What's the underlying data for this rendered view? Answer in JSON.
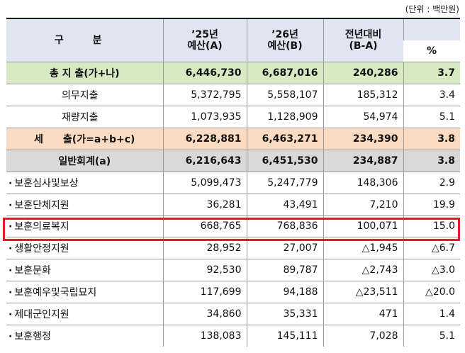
{
  "unit_note": "(단위 : 백만원)",
  "header": {
    "category": "구 분",
    "col1_line1": "’25년",
    "col1_line2": "예산(A)",
    "col2_line1": "’26년",
    "col2_line2": "예산(B)",
    "col3_line1": "전년대비",
    "col3_line2": "(B-A)",
    "col4_pct": "%"
  },
  "rows": {
    "total": {
      "name": "총 지 출(가+나)",
      "a": "6,446,730",
      "b": "6,687,016",
      "diff": "240,286",
      "pct": "3.7"
    },
    "mandatory": {
      "name": "의무지출",
      "a": "5,372,795",
      "b": "5,558,107",
      "diff": "185,312",
      "pct": "3.4"
    },
    "discretionary": {
      "name": "재량지출",
      "a": "1,073,935",
      "b": "1,128,909",
      "diff": "54,974",
      "pct": "5.1"
    },
    "expenditure": {
      "name": "세　　출(가=a+b+c)",
      "a": "6,228,881",
      "b": "6,463,271",
      "diff": "234,390",
      "pct": "3.8"
    },
    "general": {
      "name": "일반회계(a)",
      "a": "6,216,643",
      "b": "6,451,530",
      "diff": "234,887",
      "pct": "3.8"
    },
    "items": [
      {
        "name": "보훈심사및보상",
        "a": "5,099,473",
        "b": "5,247,779",
        "diff": "148,306",
        "pct": "2.9"
      },
      {
        "name": "보훈단체지원",
        "a": "36,281",
        "b": "43,491",
        "diff": "7,210",
        "pct": "19.9"
      },
      {
        "name": "보훈의료복지",
        "a": "668,765",
        "b": "768,836",
        "diff": "100,071",
        "pct": "15.0"
      },
      {
        "name": "생활안정지원",
        "a": "28,952",
        "b": "27,007",
        "diff": "△1,945",
        "pct": "△6.7"
      },
      {
        "name": "보훈문화",
        "a": "92,530",
        "b": "89,787",
        "diff": "△2,743",
        "pct": "△3.0"
      },
      {
        "name": "보훈예우및국립묘지",
        "a": "117,699",
        "b": "94,188",
        "diff": "△23,511",
        "pct": "△20.0"
      },
      {
        "name": "제대군인지원",
        "a": "34,860",
        "b": "35,331",
        "diff": "471",
        "pct": "1.4"
      },
      {
        "name": "보훈행정",
        "a": "138,083",
        "b": "145,111",
        "diff": "7,028",
        "pct": "5.1"
      }
    ]
  },
  "colors": {
    "header_bg": "#dfe5f1",
    "total_bg": "#d7eac3",
    "expenditure_bg": "#fbdcc2",
    "general_bg": "#d9d9d9",
    "highlight": "#e01b24"
  }
}
